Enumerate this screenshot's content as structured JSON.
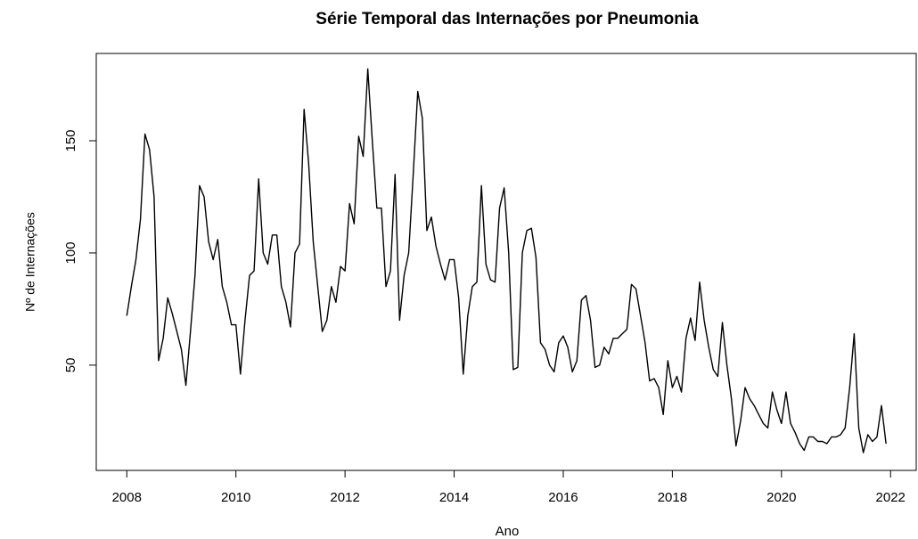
{
  "chart_data": {
    "type": "line",
    "title": "Série Temporal das Internações por Pneumonia",
    "xlabel": "Ano",
    "ylabel": "Nº de Internações",
    "color": "#000000",
    "xlim": [
      2007.44,
      2022.47
    ],
    "xticks": [
      2008,
      2010,
      2012,
      2014,
      2016,
      2018,
      2020,
      2022
    ],
    "ylim": [
      3.1,
      188.9
    ],
    "yticks": [
      50,
      100,
      150
    ],
    "x": [
      2008,
      2008.083,
      2008.167,
      2008.25,
      2008.333,
      2008.417,
      2008.5,
      2008.583,
      2008.667,
      2008.75,
      2008.833,
      2008.917,
      2009,
      2009.083,
      2009.167,
      2009.25,
      2009.333,
      2009.417,
      2009.5,
      2009.583,
      2009.667,
      2009.75,
      2009.833,
      2009.917,
      2010,
      2010.083,
      2010.167,
      2010.25,
      2010.333,
      2010.417,
      2010.5,
      2010.583,
      2010.667,
      2010.75,
      2010.833,
      2010.917,
      2011,
      2011.083,
      2011.167,
      2011.25,
      2011.333,
      2011.417,
      2011.5,
      2011.583,
      2011.667,
      2011.75,
      2011.833,
      2011.917,
      2012,
      2012.083,
      2012.167,
      2012.25,
      2012.333,
      2012.417,
      2012.5,
      2012.583,
      2012.667,
      2012.75,
      2012.833,
      2012.917,
      2013,
      2013.083,
      2013.167,
      2013.25,
      2013.333,
      2013.417,
      2013.5,
      2013.583,
      2013.667,
      2013.75,
      2013.833,
      2013.917,
      2014,
      2014.083,
      2014.167,
      2014.25,
      2014.333,
      2014.417,
      2014.5,
      2014.583,
      2014.667,
      2014.75,
      2014.833,
      2014.917,
      2015,
      2015.083,
      2015.167,
      2015.25,
      2015.333,
      2015.417,
      2015.5,
      2015.583,
      2015.667,
      2015.75,
      2015.833,
      2015.917,
      2016,
      2016.083,
      2016.167,
      2016.25,
      2016.333,
      2016.417,
      2016.5,
      2016.583,
      2016.667,
      2016.75,
      2016.833,
      2016.917,
      2017,
      2017.083,
      2017.167,
      2017.25,
      2017.333,
      2017.417,
      2017.5,
      2017.583,
      2017.667,
      2017.75,
      2017.833,
      2017.917,
      2018,
      2018.083,
      2018.167,
      2018.25,
      2018.333,
      2018.417,
      2018.5,
      2018.583,
      2018.667,
      2018.75,
      2018.833,
      2018.917,
      2019,
      2019.083,
      2019.167,
      2019.25,
      2019.333,
      2019.417,
      2019.5,
      2019.583,
      2019.667,
      2019.75,
      2019.833,
      2019.917,
      2020,
      2020.083,
      2020.167,
      2020.25,
      2020.333,
      2020.417,
      2020.5,
      2020.583,
      2020.667,
      2020.75,
      2020.833,
      2020.917,
      2021,
      2021.083,
      2021.167,
      2021.25,
      2021.333,
      2021.417,
      2021.5,
      2021.583,
      2021.667,
      2021.75,
      2021.833,
      2021.917
    ],
    "values": [
      72,
      85,
      97,
      115,
      153,
      146,
      125,
      52,
      62,
      80,
      73,
      65,
      57,
      41,
      65,
      90,
      130,
      125,
      105,
      97,
      106,
      85,
      78,
      68,
      68,
      46,
      70,
      90,
      92,
      133,
      100,
      95,
      108,
      108,
      85,
      78,
      67,
      100,
      104,
      164,
      140,
      105,
      85,
      65,
      70,
      85,
      78,
      94,
      92,
      122,
      113,
      152,
      143,
      182,
      150,
      120,
      120,
      85,
      92,
      135,
      70,
      90,
      100,
      135,
      172,
      160,
      110,
      116,
      103,
      95,
      88,
      97,
      97,
      80,
      46,
      72,
      85,
      87,
      130,
      95,
      88,
      87,
      120,
      129,
      100,
      48,
      49,
      100,
      110,
      111,
      98,
      60,
      57,
      50,
      47,
      60,
      63,
      58,
      47,
      52,
      79,
      81,
      70,
      49,
      50,
      58,
      55,
      62,
      62,
      64,
      66,
      86,
      84,
      72,
      60,
      43,
      44,
      40,
      28,
      52,
      40,
      45,
      38,
      62,
      71,
      61,
      87,
      70,
      58,
      48,
      45,
      69,
      50,
      35,
      14,
      25,
      40,
      35,
      32,
      28,
      24,
      22,
      38,
      30,
      24,
      38,
      24,
      20,
      15,
      12,
      18,
      18,
      16,
      16,
      15,
      18,
      18,
      19,
      22,
      40,
      64,
      22,
      11,
      19,
      16,
      18,
      32,
      15
    ]
  }
}
